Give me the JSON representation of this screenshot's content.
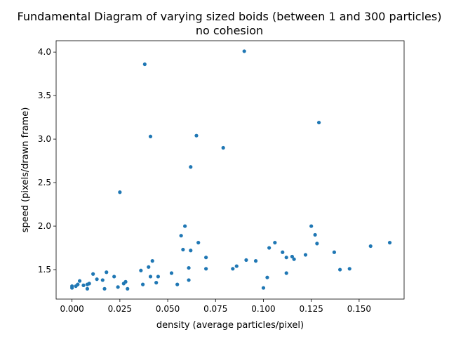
{
  "chart_data": {
    "type": "scatter",
    "title": "Fundamental Diagram of varying sized boids (between 1 and 300 particles)",
    "subtitle": "no cohesion",
    "xlabel": "density (average particles/pixel)",
    "ylabel": "speed (pixels/drawn frame)",
    "xlim": [
      -0.0083,
      0.1735
    ],
    "ylim": [
      1.1615,
      4.1305
    ],
    "x_ticks": [
      "0.000",
      "0.025",
      "0.050",
      "0.075",
      "0.100",
      "0.125",
      "0.150"
    ],
    "y_ticks": [
      "1.5",
      "2.0",
      "2.5",
      "3.0",
      "3.5",
      "4.0"
    ],
    "x_tick_values": [
      0.0,
      0.025,
      0.05,
      0.075,
      0.1,
      0.125,
      0.15
    ],
    "y_tick_values": [
      1.5,
      2.0,
      2.5,
      3.0,
      3.5,
      4.0
    ],
    "grid": false,
    "marker_color": "#1f77b4",
    "points": [
      {
        "x": 0.0,
        "y": 1.29
      },
      {
        "x": 0.0,
        "y": 1.31
      },
      {
        "x": 0.002,
        "y": 1.31
      },
      {
        "x": 0.003,
        "y": 1.33
      },
      {
        "x": 0.004,
        "y": 1.37
      },
      {
        "x": 0.006,
        "y": 1.32
      },
      {
        "x": 0.008,
        "y": 1.33
      },
      {
        "x": 0.008,
        "y": 1.28
      },
      {
        "x": 0.009,
        "y": 1.34
      },
      {
        "x": 0.011,
        "y": 1.45
      },
      {
        "x": 0.013,
        "y": 1.39
      },
      {
        "x": 0.016,
        "y": 1.38
      },
      {
        "x": 0.017,
        "y": 1.28
      },
      {
        "x": 0.018,
        "y": 1.47
      },
      {
        "x": 0.022,
        "y": 1.42
      },
      {
        "x": 0.024,
        "y": 1.3
      },
      {
        "x": 0.025,
        "y": 2.39
      },
      {
        "x": 0.027,
        "y": 1.34
      },
      {
        "x": 0.028,
        "y": 1.36
      },
      {
        "x": 0.029,
        "y": 1.28
      },
      {
        "x": 0.036,
        "y": 1.49
      },
      {
        "x": 0.037,
        "y": 1.33
      },
      {
        "x": 0.038,
        "y": 3.86
      },
      {
        "x": 0.04,
        "y": 1.53
      },
      {
        "x": 0.041,
        "y": 3.03
      },
      {
        "x": 0.041,
        "y": 1.42
      },
      {
        "x": 0.042,
        "y": 1.6
      },
      {
        "x": 0.044,
        "y": 1.35
      },
      {
        "x": 0.045,
        "y": 1.42
      },
      {
        "x": 0.052,
        "y": 1.46
      },
      {
        "x": 0.055,
        "y": 1.33
      },
      {
        "x": 0.057,
        "y": 1.89
      },
      {
        "x": 0.058,
        "y": 1.73
      },
      {
        "x": 0.059,
        "y": 2.0
      },
      {
        "x": 0.061,
        "y": 1.52
      },
      {
        "x": 0.061,
        "y": 1.38
      },
      {
        "x": 0.062,
        "y": 2.68
      },
      {
        "x": 0.062,
        "y": 1.72
      },
      {
        "x": 0.065,
        "y": 3.04
      },
      {
        "x": 0.066,
        "y": 1.81
      },
      {
        "x": 0.07,
        "y": 1.64
      },
      {
        "x": 0.07,
        "y": 1.51
      },
      {
        "x": 0.079,
        "y": 2.9
      },
      {
        "x": 0.084,
        "y": 1.51
      },
      {
        "x": 0.086,
        "y": 1.54
      },
      {
        "x": 0.09,
        "y": 4.01
      },
      {
        "x": 0.091,
        "y": 1.61
      },
      {
        "x": 0.096,
        "y": 1.6
      },
      {
        "x": 0.1,
        "y": 1.29
      },
      {
        "x": 0.102,
        "y": 1.41
      },
      {
        "x": 0.103,
        "y": 1.75
      },
      {
        "x": 0.106,
        "y": 1.81
      },
      {
        "x": 0.11,
        "y": 1.7
      },
      {
        "x": 0.112,
        "y": 1.64
      },
      {
        "x": 0.112,
        "y": 1.46
      },
      {
        "x": 0.115,
        "y": 1.65
      },
      {
        "x": 0.116,
        "y": 1.62
      },
      {
        "x": 0.122,
        "y": 1.67
      },
      {
        "x": 0.125,
        "y": 2.0
      },
      {
        "x": 0.127,
        "y": 1.9
      },
      {
        "x": 0.128,
        "y": 1.8
      },
      {
        "x": 0.129,
        "y": 3.19
      },
      {
        "x": 0.137,
        "y": 1.7
      },
      {
        "x": 0.14,
        "y": 1.5
      },
      {
        "x": 0.145,
        "y": 1.51
      },
      {
        "x": 0.156,
        "y": 1.77
      },
      {
        "x": 0.166,
        "y": 1.81
      }
    ]
  }
}
